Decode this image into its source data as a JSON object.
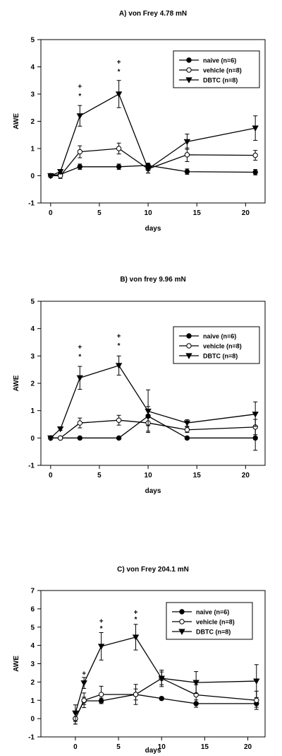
{
  "chart_data": [
    {
      "type": "line",
      "title": "A) von Frey 4.78 mN",
      "xlabel": "days",
      "ylabel": "AWE",
      "xlim": [
        -1,
        22
      ],
      "ylim": [
        -1,
        5
      ],
      "xticks": [
        0,
        5,
        10,
        15,
        20
      ],
      "yticks": [
        -1,
        0,
        1,
        2,
        3,
        4,
        5
      ],
      "grid": false,
      "legend": "top-right",
      "series": [
        {
          "name": "naive (n=6)",
          "marker": "filled-circle",
          "x": [
            0,
            1,
            3,
            7,
            10,
            14,
            21
          ],
          "y": [
            0.0,
            0.05,
            0.33,
            0.33,
            0.38,
            0.15,
            0.13
          ],
          "err": [
            0.0,
            0.05,
            0.1,
            0.1,
            0.08,
            0.1,
            0.1
          ]
        },
        {
          "name": "vehicle (n=8)",
          "marker": "open-circle",
          "x": [
            0,
            1,
            3,
            7,
            10,
            14,
            21
          ],
          "y": [
            0.0,
            0.0,
            0.88,
            1.0,
            0.25,
            0.77,
            0.75
          ],
          "err": [
            0.0,
            0.1,
            0.22,
            0.2,
            0.15,
            0.25,
            0.18
          ]
        },
        {
          "name": "DBTC (n=8)",
          "marker": "filled-triangle-down",
          "x": [
            0,
            1,
            3,
            7,
            10,
            14,
            21
          ],
          "y": [
            0.0,
            0.15,
            2.2,
            3.0,
            0.25,
            1.25,
            1.75
          ],
          "err": [
            0.0,
            0.05,
            0.38,
            0.5,
            0.15,
            0.28,
            0.45
          ]
        }
      ],
      "annotations": [
        {
          "x": 3,
          "y": 2.95,
          "text": "*"
        },
        {
          "x": 3,
          "y": 3.3,
          "text": "+"
        },
        {
          "x": 7,
          "y": 3.85,
          "text": "*"
        },
        {
          "x": 7,
          "y": 4.2,
          "text": "+"
        }
      ]
    },
    {
      "type": "line",
      "title": "B) von frey 9.96 mN",
      "xlabel": "days",
      "ylabel": "AWE",
      "xlim": [
        -1,
        22
      ],
      "ylim": [
        -1,
        5
      ],
      "xticks": [
        0,
        5,
        10,
        15,
        20
      ],
      "yticks": [
        -1,
        0,
        1,
        2,
        3,
        4,
        5
      ],
      "grid": false,
      "legend": "top-right",
      "series": [
        {
          "name": "naive (n=6)",
          "marker": "filled-circle",
          "x": [
            0,
            1,
            3,
            7,
            10,
            14,
            21
          ],
          "y": [
            0.0,
            0.0,
            0.0,
            0.0,
            0.8,
            0.0,
            0.0
          ],
          "err": [
            0.0,
            0.0,
            0.0,
            0.0,
            0.35,
            0.0,
            0.45
          ]
        },
        {
          "name": "vehicle (n=8)",
          "marker": "open-circle",
          "x": [
            0,
            1,
            3,
            7,
            10,
            14,
            21
          ],
          "y": [
            0.0,
            0.0,
            0.55,
            0.65,
            0.55,
            0.3,
            0.4
          ],
          "err": [
            0.0,
            0.0,
            0.18,
            0.18,
            0.3,
            0.1,
            0.28
          ]
        },
        {
          "name": "DBTC (n=8)",
          "marker": "filled-triangle-down",
          "x": [
            0,
            1,
            3,
            7,
            10,
            14,
            21
          ],
          "y": [
            0.0,
            0.33,
            2.2,
            2.65,
            0.98,
            0.55,
            0.87
          ],
          "err": [
            0.0,
            0.05,
            0.42,
            0.35,
            0.78,
            0.12,
            0.45
          ]
        }
      ],
      "annotations": [
        {
          "x": 3,
          "y": 3.0,
          "text": "*"
        },
        {
          "x": 3,
          "y": 3.35,
          "text": "+"
        },
        {
          "x": 7,
          "y": 3.4,
          "text": "*"
        },
        {
          "x": 7,
          "y": 3.75,
          "text": "+"
        }
      ]
    },
    {
      "type": "line",
      "title": "C) von Frey 204.1 mN",
      "xlabel": "days",
      "ylabel": "AWE",
      "xlim": [
        -4,
        22
      ],
      "ylim": [
        -1,
        7
      ],
      "xticks": [
        0,
        5,
        10,
        15,
        20
      ],
      "yticks": [
        -1,
        0,
        1,
        2,
        3,
        4,
        5,
        6,
        7
      ],
      "grid": false,
      "legend": "top-right",
      "series": [
        {
          "name": "naive (n=6)",
          "marker": "filled-circle",
          "x": [
            0,
            1,
            3,
            7,
            10,
            14,
            21
          ],
          "y": [
            0.0,
            0.97,
            0.97,
            1.32,
            1.1,
            0.82,
            0.82
          ],
          "err": [
            0.3,
            0.2,
            0.15,
            0.3,
            0.08,
            0.2,
            0.2
          ]
        },
        {
          "name": "vehicle (n=8)",
          "marker": "open-circle",
          "x": [
            0,
            1,
            3,
            7,
            10,
            14,
            21
          ],
          "y": [
            0.0,
            1.0,
            1.32,
            1.32,
            2.2,
            1.3,
            1.0
          ],
          "err": [
            0.3,
            0.4,
            0.45,
            0.55,
            0.35,
            0.55,
            0.5
          ]
        },
        {
          "name": "DBTC (n=8)",
          "marker": "filled-triangle-down",
          "x": [
            0,
            1,
            3,
            7,
            10,
            14,
            21
          ],
          "y": [
            0.3,
            1.95,
            3.95,
            4.45,
            2.2,
            1.97,
            2.05
          ],
          "err": [
            0.45,
            0.3,
            0.75,
            0.7,
            0.45,
            0.6,
            0.9
          ]
        }
      ],
      "annotations": [
        {
          "x": 1,
          "y": 2.5,
          "text": "+"
        },
        {
          "x": 3,
          "y": 4.95,
          "text": "*"
        },
        {
          "x": 3,
          "y": 5.35,
          "text": "+"
        },
        {
          "x": 7,
          "y": 5.45,
          "text": "*"
        },
        {
          "x": 7,
          "y": 5.85,
          "text": "+"
        }
      ]
    }
  ]
}
